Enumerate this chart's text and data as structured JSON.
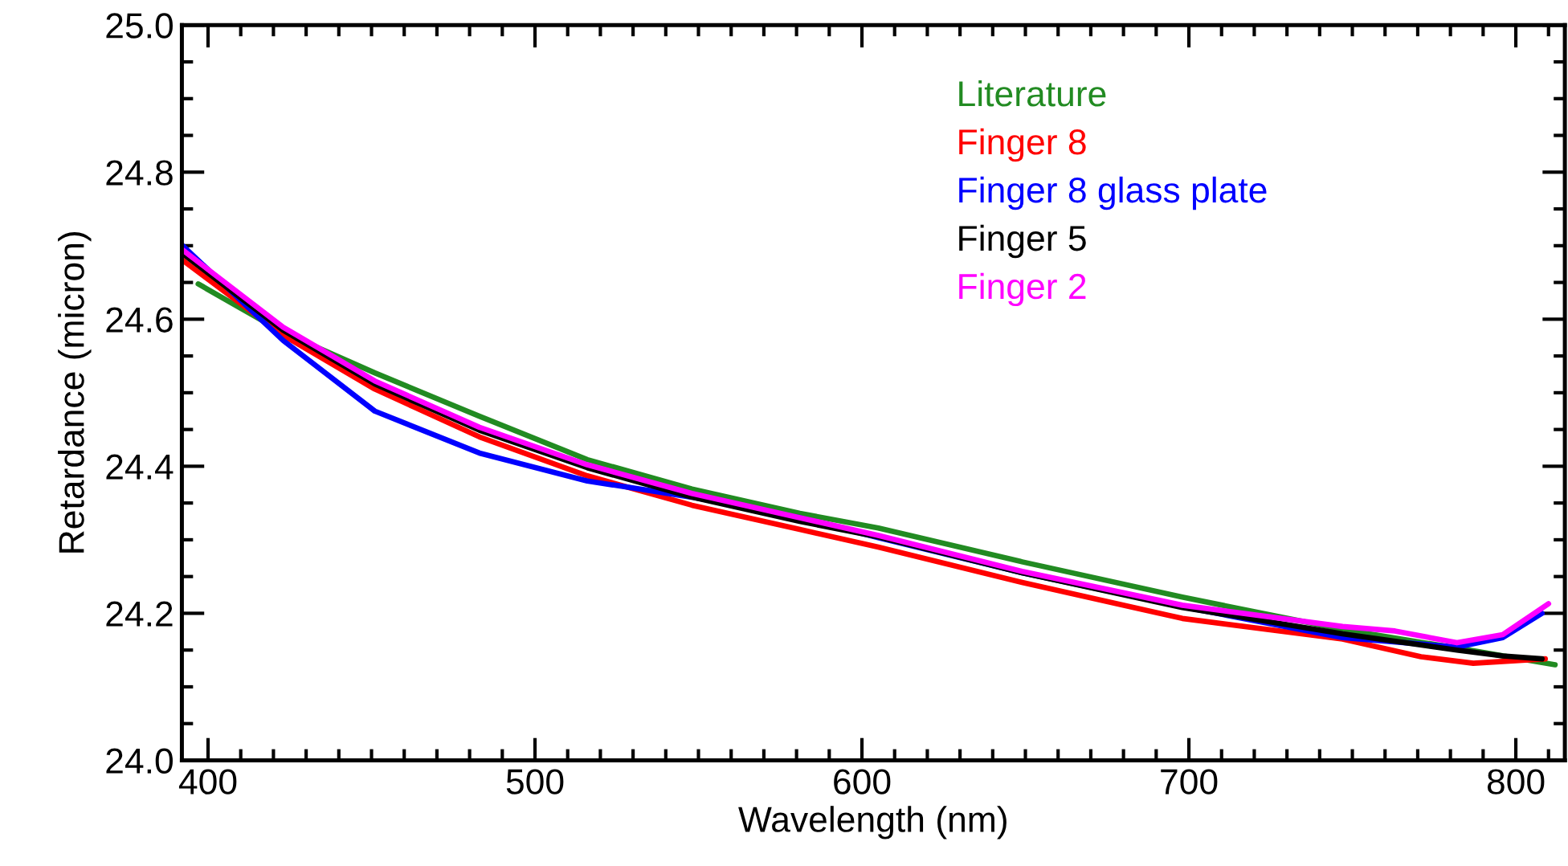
{
  "chart_data": {
    "type": "line",
    "xlabel": "Wavelength (nm)",
    "ylabel": "Retardance (micron)",
    "xlim": [
      392,
      815
    ],
    "ylim": [
      24.0,
      25.0
    ],
    "xticks": [
      400,
      500,
      600,
      700,
      800
    ],
    "yticks": [
      {
        "value": 24.0,
        "label": "24.0"
      },
      {
        "value": 24.2,
        "label": "24.2"
      },
      {
        "value": 24.4,
        "label": "24.4"
      },
      {
        "value": 24.6,
        "label": "24.6"
      },
      {
        "value": 24.8,
        "label": "24.8"
      },
      {
        "value": 25.0,
        "label": "25.0"
      }
    ],
    "grid": false,
    "legend": "top right",
    "marker": "none",
    "line_style": "solid",
    "series": [
      {
        "name": "Literature",
        "color": "#228b22",
        "x": [
          397,
          423,
          451,
          483,
          516,
          548,
          581,
          605,
          649,
          698,
          747,
          787,
          812
        ],
        "values": [
          24.648,
          24.582,
          24.527,
          24.468,
          24.409,
          24.369,
          24.336,
          24.316,
          24.27,
          24.222,
          24.178,
          24.149,
          24.13
        ]
      },
      {
        "name": "Finger 8",
        "color": "#ff0000",
        "x": [
          392,
          423,
          451,
          483,
          516,
          548,
          581,
          605,
          649,
          698,
          747,
          771,
          787,
          809
        ],
        "values": [
          24.681,
          24.578,
          24.505,
          24.44,
          24.387,
          24.347,
          24.314,
          24.29,
          24.242,
          24.193,
          24.165,
          24.141,
          24.132,
          24.138
        ]
      },
      {
        "name": "Finger 8 glass plate",
        "color": "#0000ff",
        "x": [
          392,
          423,
          451,
          483,
          516,
          548,
          581,
          605,
          649,
          698,
          747,
          782,
          796,
          808
        ],
        "values": [
          24.701,
          24.571,
          24.475,
          24.418,
          24.38,
          24.358,
          24.33,
          24.303,
          24.255,
          24.209,
          24.167,
          24.154,
          24.167,
          24.2
        ]
      },
      {
        "name": "Finger 5",
        "color": "#000000",
        "x": [
          392,
          423,
          451,
          483,
          516,
          548,
          581,
          605,
          649,
          698,
          747,
          782,
          796,
          808
        ],
        "values": [
          24.69,
          24.585,
          24.512,
          24.449,
          24.398,
          24.358,
          24.325,
          24.304,
          24.255,
          24.208,
          24.172,
          24.15,
          24.142,
          24.138
        ]
      },
      {
        "name": "Finger 2",
        "color": "#ff00ff",
        "x": [
          392,
          423,
          451,
          483,
          516,
          548,
          581,
          605,
          649,
          698,
          747,
          763,
          782,
          796,
          810
        ],
        "values": [
          24.695,
          24.589,
          24.516,
          24.453,
          24.402,
          24.363,
          24.33,
          24.306,
          24.257,
          24.211,
          24.182,
          24.176,
          24.16,
          24.171,
          24.213
        ]
      }
    ]
  }
}
